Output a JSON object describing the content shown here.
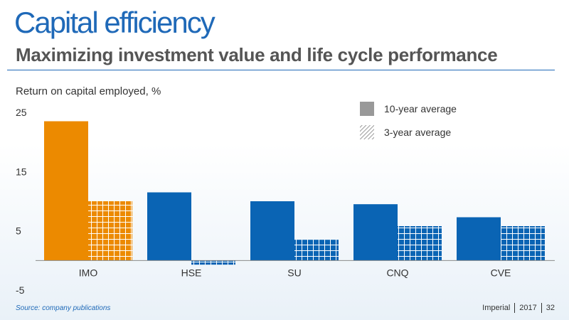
{
  "slide": {
    "title": "Capital efficiency",
    "subtitle": "Maximizing investment value and life cycle performance"
  },
  "footer": {
    "source": "Source: company publications",
    "company": "Imperial",
    "year": "2017",
    "page": "32"
  },
  "colors": {
    "title": "#1f69b8",
    "imo": "#ec8a00",
    "peer": "#0a64b4",
    "legend_gray": "#999999"
  },
  "chart_data": {
    "type": "bar",
    "title": "",
    "ylabel": "Return on capital employed, %",
    "xlabel": "",
    "ylim": [
      -5,
      25
    ],
    "yticks": [
      "25",
      "15",
      "5",
      "-5"
    ],
    "grid": false,
    "legend_placement": "top-right",
    "categories": [
      "IMO",
      "HSE",
      "SU",
      "CNQ",
      "CVE"
    ],
    "series": [
      {
        "name": "10-year average",
        "values": [
          23.5,
          11.5,
          10,
          9.5,
          7.3
        ]
      },
      {
        "name": "3-year average",
        "values": [
          10,
          -0.7,
          3.5,
          5.8,
          5.8
        ]
      }
    ]
  }
}
